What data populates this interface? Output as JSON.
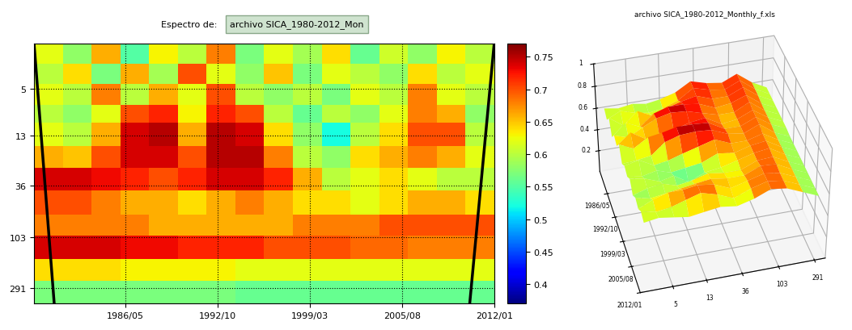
{
  "chart_data": [
    {
      "type": "heatmap",
      "title": "Espectro de:",
      "subtitle": "archivo SICA_1980-2012_Mon",
      "x_edges": [
        1980,
        1982,
        1984,
        1986,
        1988,
        1990,
        1992,
        1994,
        1996,
        1998,
        2000,
        2002,
        2004,
        2006,
        2008,
        2010,
        2012
      ],
      "y_edges": [
        2,
        3,
        4.5,
        7,
        10,
        16,
        25,
        40,
        65,
        100,
        160,
        250,
        400
      ],
      "cells": [
        [
          0.62,
          0.58,
          0.66,
          0.55,
          0.63,
          0.6,
          0.68,
          0.57,
          0.62,
          0.59,
          0.64,
          0.56,
          0.61,
          0.58,
          0.63,
          0.6
        ],
        [
          0.6,
          0.64,
          0.57,
          0.66,
          0.59,
          0.7,
          0.62,
          0.58,
          0.65,
          0.57,
          0.62,
          0.6,
          0.58,
          0.64,
          0.6,
          0.62
        ],
        [
          0.62,
          0.6,
          0.68,
          0.6,
          0.66,
          0.62,
          0.7,
          0.6,
          0.58,
          0.6,
          0.57,
          0.62,
          0.6,
          0.68,
          0.62,
          0.6
        ],
        [
          0.6,
          0.58,
          0.62,
          0.7,
          0.72,
          0.63,
          0.72,
          0.7,
          0.6,
          0.56,
          0.6,
          0.58,
          0.62,
          0.68,
          0.66,
          0.58
        ],
        [
          0.62,
          0.6,
          0.66,
          0.74,
          0.75,
          0.66,
          0.75,
          0.74,
          0.64,
          0.58,
          0.52,
          0.6,
          0.64,
          0.7,
          0.7,
          0.6
        ],
        [
          0.66,
          0.65,
          0.7,
          0.74,
          0.74,
          0.7,
          0.75,
          0.75,
          0.68,
          0.6,
          0.58,
          0.64,
          0.66,
          0.68,
          0.66,
          0.62
        ],
        [
          0.74,
          0.74,
          0.73,
          0.72,
          0.7,
          0.72,
          0.74,
          0.74,
          0.72,
          0.66,
          0.6,
          0.62,
          0.64,
          0.62,
          0.6,
          0.6
        ],
        [
          0.7,
          0.7,
          0.68,
          0.66,
          0.66,
          0.64,
          0.66,
          0.68,
          0.66,
          0.64,
          0.64,
          0.62,
          0.64,
          0.66,
          0.66,
          0.64
        ],
        [
          0.68,
          0.68,
          0.68,
          0.68,
          0.66,
          0.66,
          0.66,
          0.66,
          0.66,
          0.68,
          0.68,
          0.68,
          0.7,
          0.7,
          0.7,
          0.7
        ],
        [
          0.74,
          0.74,
          0.74,
          0.73,
          0.73,
          0.72,
          0.72,
          0.72,
          0.7,
          0.7,
          0.7,
          0.69,
          0.69,
          0.68,
          0.68,
          0.68
        ],
        [
          0.64,
          0.64,
          0.64,
          0.63,
          0.63,
          0.63,
          0.63,
          0.62,
          0.62,
          0.62,
          0.62,
          0.62,
          0.62,
          0.62,
          0.62,
          0.62
        ],
        [
          0.57,
          0.57,
          0.57,
          0.57,
          0.57,
          0.57,
          0.57,
          0.56,
          0.56,
          0.56,
          0.56,
          0.56,
          0.56,
          0.56,
          0.56,
          0.56
        ]
      ],
      "xlim": [
        1980,
        2012
      ],
      "ylim": [
        400,
        2
      ],
      "xticks": [
        {
          "value": 1986.33,
          "label": "1986/05"
        },
        {
          "value": 1992.75,
          "label": "1992/10"
        },
        {
          "value": 1999.17,
          "label": "1999/03"
        },
        {
          "value": 2005.58,
          "label": "2005/08"
        },
        {
          "value": 2012.0,
          "label": "2012/01"
        }
      ],
      "yticks": [
        5,
        13,
        36,
        103,
        291
      ],
      "log": "y",
      "grid": true,
      "colorbar": {
        "range": [
          0.37,
          0.77
        ],
        "ticks": [
          0.4,
          0.45,
          0.5,
          0.55,
          0.6,
          0.65,
          0.7,
          0.75
        ]
      },
      "cone_of_influence": [
        {
          "x": [
            1980.0,
            1981.4
          ],
          "y": [
            2,
            400
          ]
        },
        {
          "x": [
            2012.0,
            2010.3
          ],
          "y": [
            2,
            400
          ]
        }
      ]
    },
    {
      "type": "surface",
      "title": "archivo SICA_1980-2012_Monthly_f.xls",
      "x_edges": [
        1980,
        1982,
        1984,
        1986,
        1988,
        1990,
        1992,
        1994,
        1996,
        1998,
        2000,
        2002,
        2004,
        2006,
        2008,
        2010,
        2012
      ],
      "y_edges": [
        2,
        3,
        4.5,
        7,
        10,
        16,
        25,
        40,
        65,
        100,
        160,
        250,
        400
      ],
      "cells": [
        [
          0.62,
          0.58,
          0.66,
          0.55,
          0.63,
          0.6,
          0.68,
          0.57,
          0.62,
          0.59,
          0.64,
          0.56,
          0.61,
          0.58,
          0.63,
          0.6
        ],
        [
          0.6,
          0.64,
          0.57,
          0.66,
          0.59,
          0.7,
          0.62,
          0.58,
          0.65,
          0.57,
          0.62,
          0.6,
          0.58,
          0.64,
          0.6,
          0.62
        ],
        [
          0.62,
          0.6,
          0.68,
          0.6,
          0.66,
          0.62,
          0.7,
          0.6,
          0.58,
          0.6,
          0.57,
          0.62,
          0.6,
          0.68,
          0.62,
          0.6
        ],
        [
          0.6,
          0.58,
          0.62,
          0.7,
          0.72,
          0.63,
          0.72,
          0.7,
          0.6,
          0.56,
          0.6,
          0.58,
          0.62,
          0.68,
          0.66,
          0.58
        ],
        [
          0.62,
          0.6,
          0.66,
          0.74,
          0.75,
          0.66,
          0.75,
          0.74,
          0.64,
          0.58,
          0.52,
          0.6,
          0.64,
          0.7,
          0.7,
          0.6
        ],
        [
          0.66,
          0.65,
          0.7,
          0.74,
          0.74,
          0.7,
          0.75,
          0.75,
          0.68,
          0.6,
          0.58,
          0.64,
          0.66,
          0.68,
          0.66,
          0.62
        ],
        [
          0.74,
          0.74,
          0.73,
          0.72,
          0.7,
          0.72,
          0.74,
          0.74,
          0.72,
          0.66,
          0.6,
          0.62,
          0.64,
          0.62,
          0.6,
          0.6
        ],
        [
          0.7,
          0.7,
          0.68,
          0.66,
          0.66,
          0.64,
          0.66,
          0.68,
          0.66,
          0.64,
          0.64,
          0.62,
          0.64,
          0.66,
          0.66,
          0.64
        ],
        [
          0.68,
          0.68,
          0.68,
          0.68,
          0.66,
          0.66,
          0.66,
          0.66,
          0.66,
          0.68,
          0.68,
          0.68,
          0.7,
          0.7,
          0.7,
          0.7
        ],
        [
          0.74,
          0.74,
          0.74,
          0.73,
          0.73,
          0.72,
          0.72,
          0.72,
          0.7,
          0.7,
          0.7,
          0.69,
          0.69,
          0.68,
          0.68,
          0.68
        ],
        [
          0.64,
          0.64,
          0.64,
          0.63,
          0.63,
          0.63,
          0.63,
          0.62,
          0.62,
          0.62,
          0.62,
          0.62,
          0.62,
          0.62,
          0.62,
          0.62
        ],
        [
          0.57,
          0.57,
          0.57,
          0.57,
          0.57,
          0.57,
          0.57,
          0.56,
          0.56,
          0.56,
          0.56,
          0.56,
          0.56,
          0.56,
          0.56,
          0.56
        ]
      ],
      "xlim": [
        1980,
        2012
      ],
      "ylim": [
        400,
        2
      ],
      "zlim": [
        0,
        1
      ],
      "xticks": [
        {
          "value": 1986.33,
          "label": "1986/05"
        },
        {
          "value": 1992.75,
          "label": "1992/10"
        },
        {
          "value": 1999.17,
          "label": "1999/03"
        },
        {
          "value": 2005.58,
          "label": "2005/08"
        },
        {
          "value": 2012.0,
          "label": "2012/01"
        }
      ],
      "yticks": [
        291,
        103,
        36,
        13,
        5
      ],
      "zticks": [
        0.2,
        0.4,
        0.6,
        0.8,
        1
      ],
      "log": "y"
    }
  ]
}
